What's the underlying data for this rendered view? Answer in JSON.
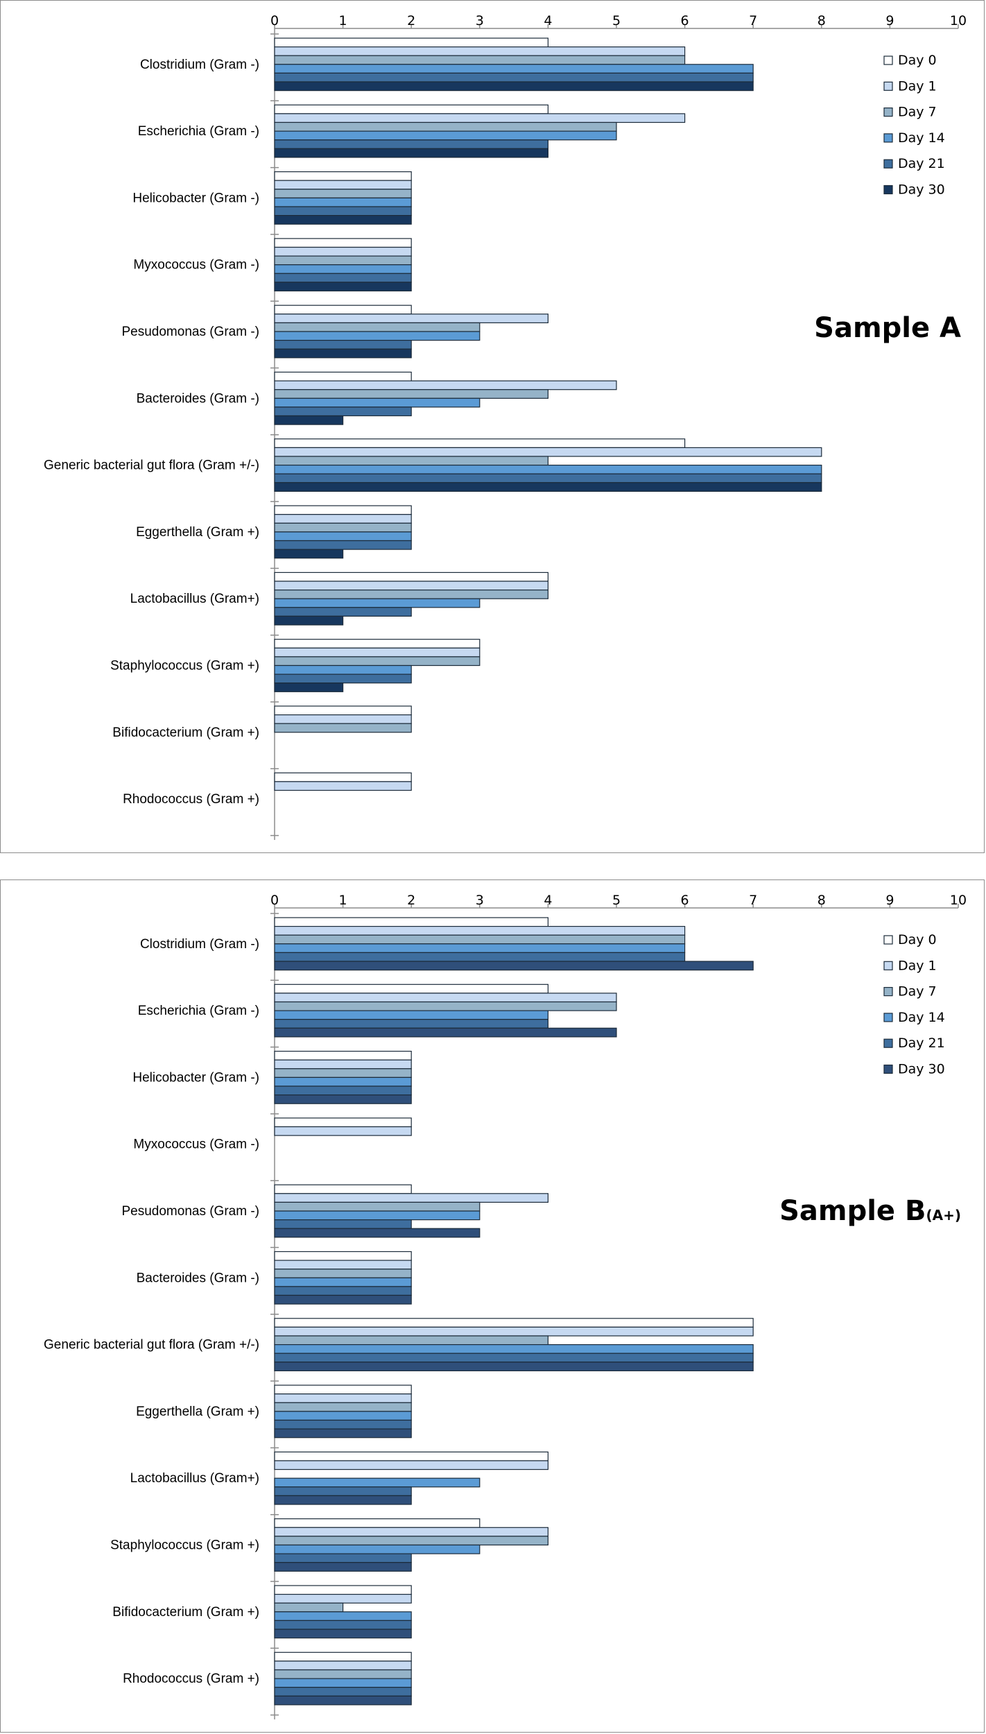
{
  "chart_data": [
    {
      "type": "bar",
      "orientation": "horizontal",
      "title": "Sample A",
      "title_sub": "",
      "categories": [
        "Clostridium (Gram -)",
        "Escherichia (Gram -)",
        "Helicobacter (Gram -)",
        "Myxococcus (Gram -)",
        "Pesudomonas (Gram -)",
        "Bacteroides (Gram -)",
        "Generic bacterial gut flora (Gram +/-)",
        "Eggerthella (Gram +)",
        "Lactobacillus (Gram+)",
        "Staphylococcus (Gram +)",
        "Bifidocacterium (Gram +)",
        "Rhodococcus (Gram +)"
      ],
      "series": [
        {
          "name": "Day 0",
          "color": "#ffffff",
          "values": [
            4,
            4,
            2,
            2,
            2,
            2,
            6,
            2,
            4,
            3,
            2,
            2
          ]
        },
        {
          "name": "Day 1",
          "color": "#c6d9f1",
          "values": [
            6,
            6,
            2,
            2,
            4,
            5,
            8,
            2,
            4,
            3,
            2,
            2
          ]
        },
        {
          "name": "Day 7",
          "color": "#95b3c8",
          "values": [
            6,
            5,
            2,
            2,
            3,
            4,
            4,
            2,
            4,
            3,
            2,
            0
          ]
        },
        {
          "name": "Day 14",
          "color": "#5b9bd5",
          "values": [
            7,
            5,
            2,
            2,
            3,
            3,
            8,
            2,
            3,
            2,
            0,
            0
          ]
        },
        {
          "name": "Day 21",
          "color": "#3e6e9e",
          "values": [
            7,
            4,
            2,
            2,
            2,
            2,
            8,
            2,
            2,
            2,
            0,
            0
          ]
        },
        {
          "name": "Day 30",
          "color": "#17375e",
          "values": [
            7,
            4,
            2,
            2,
            2,
            1,
            8,
            1,
            1,
            1,
            0,
            0
          ]
        }
      ],
      "xlim": [
        0,
        10
      ],
      "xticks": [
        "0",
        "1",
        "2",
        "3",
        "4",
        "5",
        "6",
        "7",
        "8",
        "9",
        "10"
      ],
      "legend": "top-right",
      "grid": false
    },
    {
      "type": "bar",
      "orientation": "horizontal",
      "title": "Sample B",
      "title_sub": "(A+)",
      "categories": [
        "Clostridium (Gram -)",
        "Escherichia (Gram -)",
        "Helicobacter (Gram -)",
        "Myxococcus (Gram -)",
        "Pesudomonas (Gram -)",
        "Bacteroides (Gram -)",
        "Generic bacterial gut flora (Gram +/-)",
        "Eggerthella (Gram +)",
        "Lactobacillus (Gram+)",
        "Staphylococcus (Gram +)",
        "Bifidocacterium (Gram +)",
        "Rhodococcus (Gram +)"
      ],
      "series": [
        {
          "name": "Day 0",
          "color": "#ffffff",
          "values": [
            4,
            4,
            2,
            2,
            2,
            2,
            7,
            2,
            4,
            3,
            2,
            2
          ]
        },
        {
          "name": "Day 1",
          "color": "#c6d9f1",
          "values": [
            6,
            5,
            2,
            2,
            4,
            2,
            7,
            2,
            4,
            4,
            2,
            2
          ]
        },
        {
          "name": "Day 7",
          "color": "#95b3c8",
          "values": [
            6,
            5,
            2,
            0,
            3,
            2,
            4,
            2,
            0,
            4,
            1,
            2
          ]
        },
        {
          "name": "Day 14",
          "color": "#5b9bd5",
          "values": [
            6,
            4,
            2,
            0,
            3,
            2,
            7,
            2,
            3,
            3,
            2,
            2
          ]
        },
        {
          "name": "Day 21",
          "color": "#3e6e9e",
          "values": [
            6,
            4,
            2,
            0,
            2,
            2,
            7,
            2,
            2,
            2,
            2,
            2
          ]
        },
        {
          "name": "Day 30",
          "color": "#2f4f7a",
          "values": [
            7,
            5,
            2,
            0,
            3,
            2,
            7,
            2,
            2,
            2,
            2,
            2
          ]
        }
      ],
      "xlim": [
        0,
        10
      ],
      "xticks": [
        "0",
        "1",
        "2",
        "3",
        "4",
        "5",
        "6",
        "7",
        "8",
        "9",
        "10"
      ],
      "legend": "top-right",
      "grid": false
    }
  ]
}
